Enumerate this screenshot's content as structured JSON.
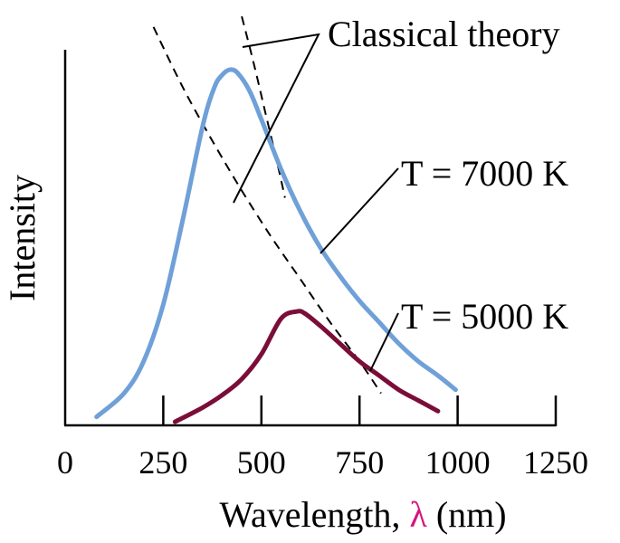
{
  "chart_data": {
    "type": "line",
    "xlabel": {
      "prefix": "Wavelength, ",
      "symbol": "λ",
      "suffix": " (nm)"
    },
    "ylabel": "Intensity",
    "xlim": [
      0,
      1250
    ],
    "x_ticks": [
      0,
      250,
      500,
      750,
      1000,
      1250
    ],
    "y_ticks": [],
    "grid": false,
    "series": [
      {
        "name": "T = 7000 K",
        "color": "#6fa0d8",
        "style": "solid",
        "x": [
          80,
          150,
          200,
          250,
          300,
          350,
          380,
          400,
          420,
          440,
          470,
          500,
          550,
          600,
          650,
          700,
          750,
          800,
          850,
          900,
          950,
          995
        ],
        "y": [
          0.024,
          0.09,
          0.18,
          0.34,
          0.58,
          0.84,
          0.95,
          0.985,
          1.0,
          0.99,
          0.94,
          0.86,
          0.72,
          0.6,
          0.5,
          0.42,
          0.35,
          0.29,
          0.23,
          0.18,
          0.14,
          0.1
        ]
      },
      {
        "name": "T = 5000 K",
        "color": "#7a0e38",
        "style": "solid",
        "x": [
          280,
          350,
          400,
          450,
          500,
          550,
          590,
          610,
          650,
          700,
          750,
          800,
          850,
          900,
          950
        ],
        "y": [
          0.01,
          0.05,
          0.085,
          0.13,
          0.2,
          0.3,
          0.32,
          0.315,
          0.28,
          0.23,
          0.18,
          0.14,
          0.1,
          0.07,
          0.04
        ]
      },
      {
        "name": "Classical theory",
        "color": "#000000",
        "style": "dashed",
        "x": [
          225,
          300,
          375,
          450,
          525,
          600,
          675,
          750,
          805
        ],
        "y": [
          1.12,
          0.95,
          0.8,
          0.66,
          0.53,
          0.41,
          0.29,
          0.18,
          0.09
        ]
      },
      {
        "name": "Classical theory",
        "color": "#000000",
        "style": "dashed",
        "x": [
          450,
          480,
          510,
          540,
          560
        ],
        "y": [
          1.15,
          1.02,
          0.88,
          0.74,
          0.64
        ]
      }
    ],
    "annotations": [
      {
        "text": "Classical theory",
        "target_series": [
          2,
          3
        ]
      },
      {
        "text": "T = 7000 K",
        "target_series": 0
      },
      {
        "text": "T = 5000 K",
        "target_series": 1
      }
    ]
  }
}
